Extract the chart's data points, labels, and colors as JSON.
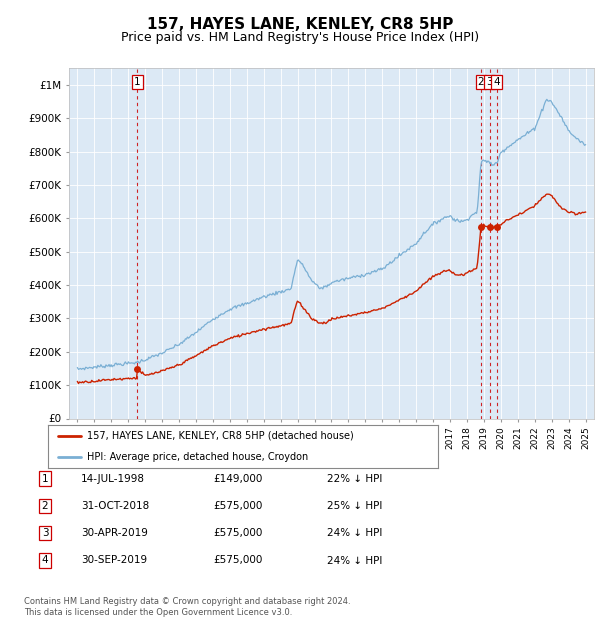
{
  "title": "157, HAYES LANE, KENLEY, CR8 5HP",
  "subtitle": "Price paid vs. HM Land Registry's House Price Index (HPI)",
  "title_fontsize": 11,
  "subtitle_fontsize": 9,
  "background_color": "#ffffff",
  "plot_bg_color": "#dce9f5",
  "legend_line1": "157, HAYES LANE, KENLEY, CR8 5HP (detached house)",
  "legend_line2": "HPI: Average price, detached house, Croydon",
  "hpi_color": "#7aafd4",
  "price_color": "#cc2200",
  "sale_marker_color": "#cc2200",
  "vline_color": "#cc0000",
  "footer_text": "Contains HM Land Registry data © Crown copyright and database right 2024.\nThis data is licensed under the Open Government Licence v3.0.",
  "table_entries": [
    {
      "num": "1",
      "date": "14-JUL-1998",
      "price": "£149,000",
      "hpi": "22% ↓ HPI"
    },
    {
      "num": "2",
      "date": "31-OCT-2018",
      "price": "£575,000",
      "hpi": "25% ↓ HPI"
    },
    {
      "num": "3",
      "date": "30-APR-2019",
      "price": "£575,000",
      "hpi": "24% ↓ HPI"
    },
    {
      "num": "4",
      "date": "30-SEP-2019",
      "price": "£575,000",
      "hpi": "24% ↓ HPI"
    }
  ],
  "sale_points": [
    {
      "year": 1998.54,
      "price": 149000
    },
    {
      "year": 2018.83,
      "price": 575000
    },
    {
      "year": 2019.33,
      "price": 575000
    },
    {
      "year": 2019.75,
      "price": 575000
    }
  ],
  "vlines": [
    1998.54,
    2018.83,
    2019.33,
    2019.75
  ],
  "ylim": [
    0,
    1050000
  ],
  "xlim_start": 1994.5,
  "xlim_end": 2025.5,
  "yticks": [
    0,
    100000,
    200000,
    300000,
    400000,
    500000,
    600000,
    700000,
    800000,
    900000,
    1000000
  ],
  "ytick_labels": [
    "£0",
    "£100K",
    "£200K",
    "£300K",
    "£400K",
    "£500K",
    "£600K",
    "£700K",
    "£800K",
    "£900K",
    "£1M"
  ],
  "xticks": [
    1995,
    1996,
    1997,
    1998,
    1999,
    2000,
    2001,
    2002,
    2003,
    2004,
    2005,
    2006,
    2007,
    2008,
    2009,
    2010,
    2011,
    2012,
    2013,
    2014,
    2015,
    2016,
    2017,
    2018,
    2019,
    2020,
    2021,
    2022,
    2023,
    2024,
    2025
  ],
  "hpi_breakpoints": [
    [
      1995.0,
      148000
    ],
    [
      1996.0,
      154000
    ],
    [
      1997.0,
      160000
    ],
    [
      1998.0,
      165000
    ],
    [
      1998.5,
      168000
    ],
    [
      1999.0,
      176000
    ],
    [
      2000.0,
      196000
    ],
    [
      2001.0,
      222000
    ],
    [
      2002.0,
      258000
    ],
    [
      2003.0,
      298000
    ],
    [
      2004.0,
      328000
    ],
    [
      2005.0,
      345000
    ],
    [
      2006.0,
      365000
    ],
    [
      2007.0,
      380000
    ],
    [
      2007.6,
      388000
    ],
    [
      2008.0,
      478000
    ],
    [
      2008.4,
      452000
    ],
    [
      2008.8,
      415000
    ],
    [
      2009.3,
      390000
    ],
    [
      2009.8,
      398000
    ],
    [
      2010.0,
      408000
    ],
    [
      2011.0,
      420000
    ],
    [
      2012.0,
      432000
    ],
    [
      2013.0,
      448000
    ],
    [
      2014.0,
      488000
    ],
    [
      2015.0,
      525000
    ],
    [
      2015.5,
      558000
    ],
    [
      2016.0,
      582000
    ],
    [
      2016.5,
      598000
    ],
    [
      2017.0,
      608000
    ],
    [
      2017.3,
      595000
    ],
    [
      2017.8,
      590000
    ],
    [
      2018.0,
      598000
    ],
    [
      2018.3,
      610000
    ],
    [
      2018.6,
      618000
    ],
    [
      2018.83,
      768000
    ],
    [
      2019.0,
      772000
    ],
    [
      2019.33,
      770000
    ],
    [
      2019.5,
      758000
    ],
    [
      2019.75,
      765000
    ],
    [
      2020.0,
      798000
    ],
    [
      2020.5,
      818000
    ],
    [
      2021.0,
      835000
    ],
    [
      2021.5,
      852000
    ],
    [
      2022.0,
      870000
    ],
    [
      2022.4,
      920000
    ],
    [
      2022.7,
      958000
    ],
    [
      2023.0,
      948000
    ],
    [
      2023.3,
      925000
    ],
    [
      2023.6,
      900000
    ],
    [
      2024.0,
      862000
    ],
    [
      2024.5,
      838000
    ],
    [
      2025.0,
      820000
    ]
  ],
  "price_breakpoints": [
    [
      1995.0,
      108000
    ],
    [
      1996.0,
      112000
    ],
    [
      1997.0,
      117000
    ],
    [
      1998.0,
      120000
    ],
    [
      1998.5,
      122000
    ],
    [
      1998.54,
      149000
    ],
    [
      1999.0,
      128000
    ],
    [
      2000.0,
      142000
    ],
    [
      2001.0,
      161000
    ],
    [
      2002.0,
      188000
    ],
    [
      2003.0,
      218000
    ],
    [
      2004.0,
      240000
    ],
    [
      2005.0,
      255000
    ],
    [
      2006.0,
      268000
    ],
    [
      2007.0,
      278000
    ],
    [
      2007.6,
      284000
    ],
    [
      2008.0,
      355000
    ],
    [
      2008.4,
      328000
    ],
    [
      2008.8,
      302000
    ],
    [
      2009.3,
      285000
    ],
    [
      2009.8,
      290000
    ],
    [
      2010.0,
      298000
    ],
    [
      2011.0,
      308000
    ],
    [
      2012.0,
      318000
    ],
    [
      2013.0,
      330000
    ],
    [
      2014.0,
      355000
    ],
    [
      2015.0,
      382000
    ],
    [
      2015.5,
      405000
    ],
    [
      2016.0,
      425000
    ],
    [
      2016.5,
      438000
    ],
    [
      2017.0,
      445000
    ],
    [
      2017.3,
      432000
    ],
    [
      2017.8,
      430000
    ],
    [
      2018.0,
      436000
    ],
    [
      2018.3,
      445000
    ],
    [
      2018.6,
      452000
    ],
    [
      2018.83,
      575000
    ],
    [
      2019.0,
      578000
    ],
    [
      2019.33,
      575000
    ],
    [
      2019.5,
      572000
    ],
    [
      2019.75,
      575000
    ],
    [
      2020.0,
      582000
    ],
    [
      2020.5,
      598000
    ],
    [
      2021.0,
      610000
    ],
    [
      2021.5,
      622000
    ],
    [
      2022.0,
      638000
    ],
    [
      2022.4,
      658000
    ],
    [
      2022.7,
      672000
    ],
    [
      2023.0,
      668000
    ],
    [
      2023.3,
      648000
    ],
    [
      2023.6,
      630000
    ],
    [
      2024.0,
      618000
    ],
    [
      2024.5,
      612000
    ],
    [
      2025.0,
      620000
    ]
  ]
}
